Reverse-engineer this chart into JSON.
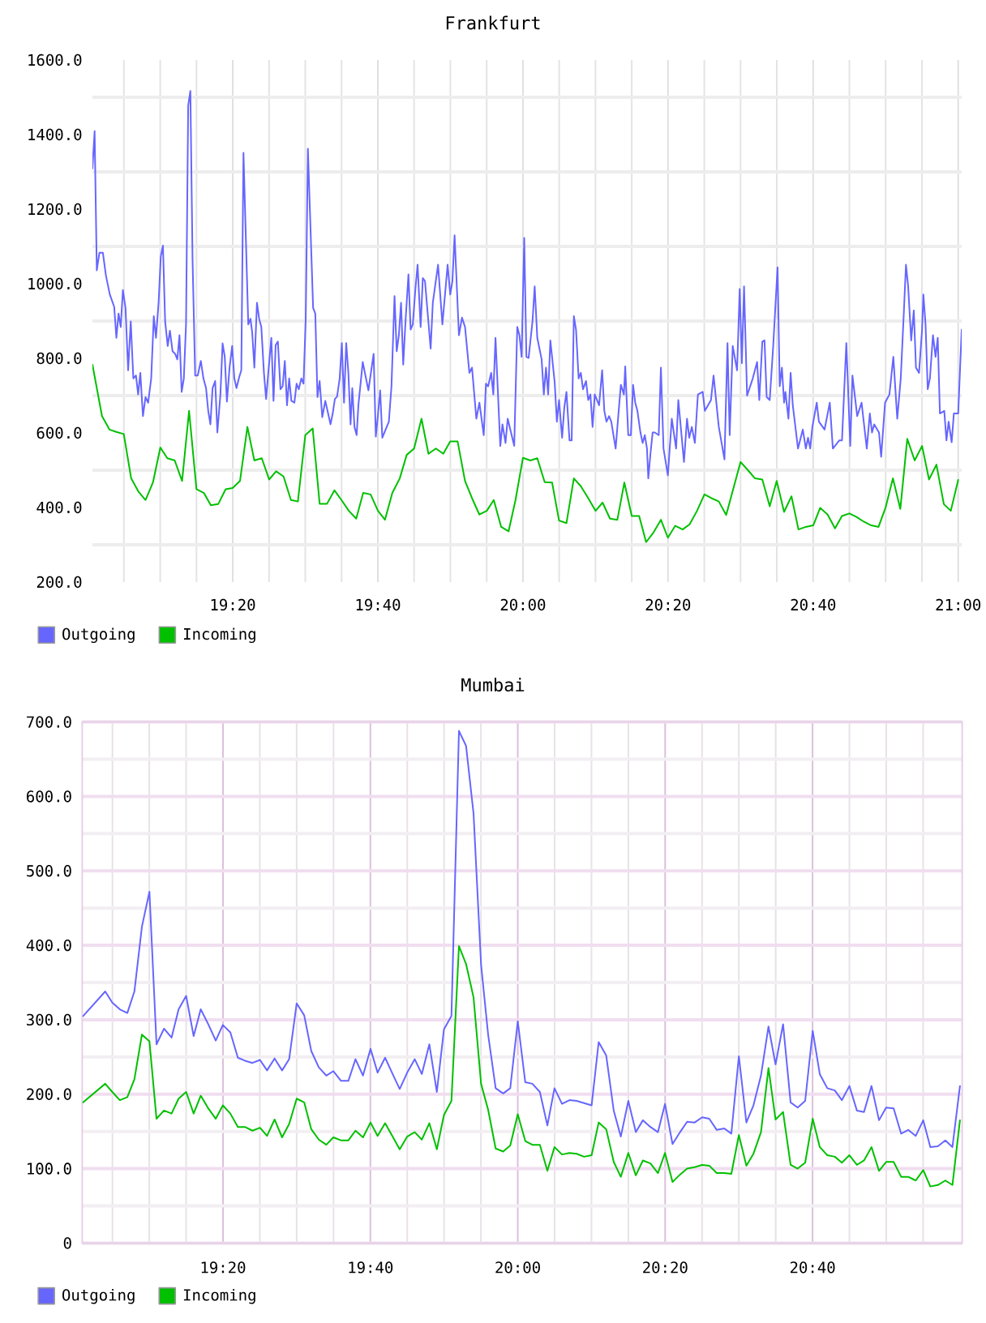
{
  "chart_data": [
    {
      "type": "line",
      "title": "Frankfurt",
      "series": [
        {
          "name": "Outgoing",
          "color": "#6666ff",
          "x": [
            19.011,
            19.016,
            19.021,
            19.027,
            19.035,
            19.042,
            19.051,
            19.061,
            19.066,
            19.071,
            19.076,
            19.081,
            19.087,
            19.093,
            19.099,
            19.105,
            19.111,
            19.116,
            19.121,
            19.127,
            19.133,
            19.139,
            19.146,
            19.152,
            19.157,
            19.163,
            19.168,
            19.173,
            19.178,
            19.184,
            19.189,
            19.195,
            19.201,
            19.206,
            19.211,
            19.216,
            19.221,
            19.226,
            19.231,
            19.236,
            19.241,
            19.247,
            19.253,
            19.26,
            19.266,
            19.272,
            19.277,
            19.282,
            19.287,
            19.293,
            19.298,
            19.305,
            19.31,
            19.315,
            19.32,
            19.326,
            19.332,
            19.337,
            19.342,
            19.348,
            19.353,
            19.358,
            19.369,
            19.374,
            19.378,
            19.383,
            19.389,
            19.394,
            19.399,
            19.405,
            19.41,
            19.415,
            19.422,
            19.427,
            19.432,
            19.437,
            19.443,
            19.448,
            19.453,
            19.458,
            19.463,
            19.468,
            19.475,
            19.48,
            19.485,
            19.491,
            19.496,
            19.501,
            19.506,
            19.518,
            19.523,
            19.528,
            19.533,
            19.539,
            19.546,
            19.558,
            19.563,
            19.568,
            19.573,
            19.579,
            19.584,
            19.589,
            19.594,
            19.599,
            19.604,
            19.608,
            19.613,
            19.618,
            19.622,
            19.632,
            19.645,
            19.657,
            19.662,
            19.667,
            19.672,
            19.677,
            19.692,
            19.698,
            19.705,
            19.71,
            19.715,
            19.72,
            19.725,
            19.73,
            19.737,
            19.742,
            19.747,
            19.753,
            19.758,
            19.765,
            19.77,
            19.775,
            19.788,
            19.793,
            19.805,
            19.815,
            19.827,
            19.833,
            19.838,
            19.843,
            19.853,
            19.86,
            19.867,
            19.877,
            19.883,
            19.893,
            19.9,
            19.91,
            19.915,
            19.92,
            19.927,
            19.932,
            19.937,
            19.948,
            19.953,
            19.96,
            19.965,
            19.98,
            19.987,
            19.992,
            19.997,
            20.003,
            20.008,
            20.013,
            20.022,
            20.027,
            20.033,
            20.043,
            20.048,
            20.053,
            20.058,
            20.063,
            20.073,
            20.078,
            20.083,
            20.09,
            20.095,
            20.1,
            20.107,
            20.112,
            20.117,
            20.122,
            20.128,
            20.133,
            20.138,
            20.145,
            20.15,
            20.155,
            20.16,
            20.165,
            20.175,
            20.182,
            20.187,
            20.192,
            20.198,
            20.203,
            20.213,
            20.22,
            20.225,
            20.232,
            20.235,
            20.242,
            20.248,
            20.253,
            20.258,
            20.263,
            20.27,
            20.275,
            20.28,
            20.285,
            20.288,
            20.293,
            20.298,
            20.303,
            20.312,
            20.317,
            20.323,
            20.333,
            20.342,
            20.352,
            20.357,
            20.37,
            20.377,
            20.382,
            20.388,
            20.395,
            20.402,
            20.413,
            20.418,
            20.432,
            20.438,
            20.45,
            20.463,
            20.47,
            20.475,
            20.482,
            20.492,
            20.498,
            20.503,
            20.508,
            20.515,
            20.528,
            20.538,
            20.543,
            20.55,
            20.555,
            20.56,
            20.567,
            20.575,
            20.585,
            20.59,
            20.595,
            20.6,
            20.603,
            20.61,
            20.615,
            20.62,
            20.632,
            20.643,
            20.65,
            20.655,
            20.66,
            20.665,
            20.675,
            20.68,
            20.693,
            20.705,
            20.712,
            20.727,
            20.733,
            20.743,
            20.752,
            20.757,
            20.768,
            20.778,
            20.79,
            20.797,
            20.802,
            20.807,
            20.818,
            20.823,
            20.832,
            20.842,
            20.851,
            20.86,
            20.868,
            20.875,
            20.88,
            20.885,
            20.892,
            20.898,
            20.903,
            20.91,
            20.917,
            20.92,
            20.925,
            20.93,
            20.935,
            20.942,
            20.948,
            20.953,
            20.958,
            20.968,
            20.973,
            20.978,
            20.985,
            20.99,
            21.0,
            21.008
          ],
          "values": [
            1309,
            1409,
            1036,
            1083,
            1083,
            1022,
            971,
            938,
            855,
            920,
            884,
            983,
            935,
            768,
            899,
            746,
            754,
            703,
            761,
            645,
            696,
            681,
            746,
            913,
            855,
            949,
            1073,
            1102,
            899,
            833,
            874,
            819,
            812,
            797,
            862,
            710,
            746,
            891,
            1478,
            1517,
            1065,
            754,
            754,
            793,
            746,
            720,
            659,
            623,
            720,
            739,
            601,
            703,
            840,
            804,
            684,
            775,
            833,
            746,
            720,
            749,
            768,
            1351,
            891,
            906,
            870,
            775,
            949,
            906,
            884,
            761,
            691,
            761,
            855,
            686,
            836,
            845,
            717,
            725,
            793,
            674,
            746,
            686,
            681,
            732,
            717,
            746,
            732,
            906,
            1362,
            935,
            920,
            696,
            739,
            642,
            686,
            623,
            652,
            691,
            697,
            746,
            841,
            681,
            841,
            761,
            623,
            720,
            616,
            594,
            674,
            790,
            714,
            812,
            590,
            648,
            714,
            587,
            630,
            725,
            967,
            819,
            862,
            949,
            783,
            894,
            1025,
            877,
            891,
            986,
            1051,
            884,
            1015,
            1007,
            826,
            949,
            1051,
            891,
            1051,
            971,
            1007,
            1130,
            862,
            909,
            884,
            761,
            775,
            638,
            681,
            594,
            732,
            725,
            761,
            703,
            855,
            565,
            623,
            573,
            638,
            565,
            884,
            862,
            804,
            1123,
            804,
            801,
            899,
            993,
            855,
            797,
            703,
            775,
            703,
            848,
            735,
            630,
            688,
            587,
            667,
            710,
            580,
            580,
            913,
            877,
            746,
            761,
            717,
            739,
            688,
            703,
            616,
            703,
            674,
            768,
            659,
            630,
            645,
            630,
            558,
            659,
            729,
            703,
            778,
            594,
            594,
            729,
            681,
            659,
            601,
            573,
            594,
            558,
            478,
            544,
            601,
            601,
            594,
            775,
            558,
            486,
            638,
            558,
            688,
            522,
            638,
            587,
            616,
            573,
            703,
            710,
            659,
            688,
            754,
            616,
            529,
            841,
            594,
            833,
            768,
            986,
            787,
            993,
            700,
            746,
            790,
            688,
            845,
            848,
            696,
            688,
            833,
            1044,
            725,
            775,
            681,
            710,
            638,
            761,
            674,
            558,
            609,
            558,
            587,
            558,
            616,
            681,
            630,
            609,
            681,
            558,
            580,
            580,
            841,
            565,
            754,
            645,
            681,
            558,
            652,
            601,
            623,
            601,
            536,
            681,
            703,
            804,
            638,
            746,
            920,
            1051,
            993,
            848,
            928,
            775,
            761,
            877,
            971,
            891,
            717,
            746,
            862,
            804,
            855,
            652,
            659,
            580,
            630,
            575,
            652,
            652,
            877
          ]
        },
        {
          "name": "Incoming",
          "color": "#00c000",
          "x": [
            19.011,
            19.033,
            19.05,
            19.067,
            19.083,
            19.1,
            19.117,
            19.133,
            19.15,
            19.167,
            19.183,
            19.2,
            19.217,
            19.233,
            19.25,
            19.267,
            19.283,
            19.3,
            19.317,
            19.333,
            19.35,
            19.367,
            19.383,
            19.4,
            19.417,
            19.433,
            19.45,
            19.467,
            19.483,
            19.5,
            19.517,
            19.533,
            19.55,
            19.567,
            19.583,
            19.6,
            19.617,
            19.633,
            19.65,
            19.667,
            19.683,
            19.7,
            19.717,
            19.733,
            19.75,
            19.767,
            19.783,
            19.8,
            19.817,
            19.833,
            19.85,
            19.867,
            19.883,
            19.9,
            19.917,
            19.933,
            19.95,
            19.967,
            19.983,
            20,
            20.017,
            20.033,
            20.05,
            20.067,
            20.083,
            20.1,
            20.117,
            20.133,
            20.15,
            20.167,
            20.183,
            20.2,
            20.217,
            20.233,
            20.25,
            20.267,
            20.283,
            20.3,
            20.317,
            20.333,
            20.35,
            20.367,
            20.383,
            20.4,
            20.417,
            20.433,
            20.45,
            20.467,
            20.483,
            20.5,
            20.517,
            20.533,
            20.55,
            20.567,
            20.583,
            20.6,
            20.617,
            20.633,
            20.65,
            20.667,
            20.683,
            20.7,
            20.717,
            20.733,
            20.75,
            20.767,
            20.783,
            20.8,
            20.817,
            20.833,
            20.85,
            20.867,
            20.883,
            20.9,
            20.917,
            20.933,
            20.95,
            20.967,
            20.983,
            21
          ],
          "values": [
            783,
            645,
            609,
            602,
            597,
            478,
            442,
            420,
            467,
            561,
            532,
            526,
            471,
            659,
            449,
            439,
            406,
            409,
            449,
            452,
            471,
            616,
            526,
            532,
            475,
            497,
            483,
            420,
            416,
            594,
            612,
            410,
            410,
            446,
            420,
            391,
            370,
            439,
            435,
            391,
            367,
            439,
            478,
            541,
            558,
            638,
            544,
            558,
            544,
            577,
            577,
            471,
            425,
            381,
            391,
            420,
            348,
            336,
            420,
            533,
            526,
            532,
            468,
            467,
            365,
            358,
            478,
            457,
            425,
            391,
            413,
            370,
            367,
            467,
            377,
            377,
            307,
            333,
            367,
            319,
            351,
            341,
            355,
            391,
            435,
            425,
            416,
            380,
            449,
            522,
            500,
            478,
            475,
            403,
            471,
            388,
            430,
            341,
            348,
            352,
            399,
            381,
            344,
            377,
            384,
            374,
            362,
            352,
            348,
            399,
            478,
            396,
            584,
            526,
            565,
            475,
            515,
            409,
            391,
            474
          ]
        }
      ],
      "xlim": [
        19.011,
        21.008
      ],
      "xticks": [
        {
          "value": 19.0833,
          "label": null
        },
        {
          "value": 19.1667,
          "label": null
        },
        {
          "value": 19.25,
          "label": null
        },
        {
          "value": 19.3333,
          "label": "19:20"
        },
        {
          "value": 19.4167,
          "label": null
        },
        {
          "value": 19.5,
          "label": null
        },
        {
          "value": 19.5833,
          "label": null
        },
        {
          "value": 19.6667,
          "label": "19:40"
        },
        {
          "value": 19.75,
          "label": null
        },
        {
          "value": 19.8333,
          "label": null
        },
        {
          "value": 19.9167,
          "label": null
        },
        {
          "value": 20,
          "label": "20:00"
        },
        {
          "value": 20.0833,
          "label": null
        },
        {
          "value": 20.1667,
          "label": null
        },
        {
          "value": 20.25,
          "label": null
        },
        {
          "value": 20.3333,
          "label": "20:20"
        },
        {
          "value": 20.4167,
          "label": null
        },
        {
          "value": 20.5,
          "label": null
        },
        {
          "value": 20.5833,
          "label": null
        },
        {
          "value": 20.6667,
          "label": "20:40"
        },
        {
          "value": 20.75,
          "label": null
        },
        {
          "value": 20.8333,
          "label": null
        },
        {
          "value": 20.9167,
          "label": null
        },
        {
          "value": 21,
          "label": "21:00"
        }
      ],
      "ylim": [
        200,
        1600
      ],
      "yticks": [
        {
          "value": 200,
          "label": "200.0"
        },
        {
          "value": 300,
          "label": null
        },
        {
          "value": 400,
          "label": "400.0"
        },
        {
          "value": 500,
          "label": null
        },
        {
          "value": 600,
          "label": "600.0"
        },
        {
          "value": 700,
          "label": null
        },
        {
          "value": 800,
          "label": "800.0"
        },
        {
          "value": 900,
          "label": null
        },
        {
          "value": 1000,
          "label": "1000.0"
        },
        {
          "value": 1100,
          "label": null
        },
        {
          "value": 1200,
          "label": "1200.0"
        },
        {
          "value": 1300,
          "label": null
        },
        {
          "value": 1400,
          "label": "1400.0"
        },
        {
          "value": 1500,
          "label": null
        },
        {
          "value": 1600,
          "label": "1600.0"
        }
      ],
      "grid": true,
      "legend": "bottom left"
    },
    {
      "type": "line",
      "title": "Mumbai",
      "x": [
        19.017,
        19.067,
        19.083,
        19.1,
        19.117,
        19.133,
        19.15,
        19.167,
        19.183,
        19.2,
        19.217,
        19.233,
        19.25,
        19.267,
        19.283,
        19.3,
        19.317,
        19.333,
        19.35,
        19.367,
        19.383,
        19.4,
        19.417,
        19.433,
        19.45,
        19.467,
        19.483,
        19.5,
        19.517,
        19.533,
        19.55,
        19.567,
        19.583,
        19.6,
        19.617,
        19.633,
        19.65,
        19.667,
        19.683,
        19.7,
        19.717,
        19.733,
        19.75,
        19.767,
        19.783,
        19.8,
        19.817,
        19.833,
        19.85,
        19.867,
        19.883,
        19.9,
        19.917,
        19.933,
        19.95,
        19.967,
        19.983,
        20,
        20.017,
        20.033,
        20.05,
        20.067,
        20.083,
        20.1,
        20.117,
        20.133,
        20.15,
        20.167,
        20.183,
        20.2,
        20.217,
        20.233,
        20.25,
        20.267,
        20.283,
        20.3,
        20.317,
        20.333,
        20.35,
        20.367,
        20.383,
        20.4,
        20.417,
        20.433,
        20.45,
        20.467,
        20.483,
        20.5,
        20.517,
        20.533,
        20.55,
        20.567,
        20.583,
        20.6,
        20.617,
        20.633,
        20.65,
        20.667,
        20.683,
        20.7,
        20.717,
        20.733,
        20.75,
        20.767,
        20.783,
        20.8,
        20.817,
        20.833,
        20.85,
        20.867,
        20.883,
        20.9,
        20.917,
        20.933,
        20.95,
        20.967,
        20.983,
        21
      ],
      "series": [
        {
          "name": "Outgoing",
          "color": "#6666ff",
          "values": [
            305,
            338,
            323,
            314,
            309,
            338,
            425,
            472,
            267,
            288,
            276,
            314,
            332,
            278,
            314,
            294,
            272,
            293,
            283,
            249,
            245,
            242,
            246,
            232,
            248,
            232,
            247,
            322,
            306,
            258,
            236,
            225,
            231,
            218,
            218,
            247,
            225,
            261,
            229,
            249,
            227,
            207,
            229,
            247,
            227,
            267,
            203,
            287,
            305,
            688,
            668,
            577,
            374,
            280,
            208,
            201,
            208,
            298,
            216,
            214,
            203,
            158,
            208,
            187,
            192,
            191,
            188,
            185,
            270,
            252,
            178,
            143,
            191,
            149,
            165,
            156,
            149,
            187,
            133,
            149,
            163,
            162,
            169,
            167,
            152,
            154,
            147,
            251,
            162,
            185,
            225,
            291,
            240,
            294,
            189,
            182,
            191,
            285,
            227,
            208,
            205,
            192,
            211,
            178,
            176,
            211,
            165,
            182,
            181,
            147,
            152,
            144,
            165,
            129,
            130,
            138,
            129,
            211
          ]
        },
        {
          "name": "Incoming",
          "color": "#00c000",
          "values": [
            189,
            214,
            203,
            192,
            196,
            220,
            280,
            271,
            167,
            178,
            174,
            194,
            203,
            174,
            198,
            181,
            167,
            185,
            174,
            156,
            156,
            151,
            155,
            144,
            166,
            142,
            160,
            194,
            189,
            153,
            139,
            132,
            142,
            138,
            138,
            151,
            142,
            162,
            144,
            161,
            143,
            126,
            143,
            149,
            139,
            161,
            126,
            172,
            191,
            399,
            375,
            330,
            214,
            179,
            127,
            123,
            131,
            173,
            137,
            132,
            132,
            97,
            129,
            119,
            121,
            120,
            116,
            118,
            162,
            153,
            109,
            89,
            121,
            91,
            111,
            107,
            94,
            121,
            82,
            92,
            100,
            102,
            105,
            104,
            94,
            94,
            93,
            145,
            104,
            120,
            149,
            235,
            166,
            176,
            105,
            100,
            108,
            167,
            129,
            118,
            116,
            108,
            118,
            105,
            111,
            129,
            97,
            109,
            109,
            89,
            89,
            84,
            98,
            76,
            78,
            84,
            78,
            165
          ]
        }
      ],
      "xlim": [
        19.015,
        21.005
      ],
      "xticks": [
        {
          "value": 19.0833,
          "label": null
        },
        {
          "value": 19.1667,
          "label": null
        },
        {
          "value": 19.25,
          "label": null
        },
        {
          "value": 19.3333,
          "label": "19:20"
        },
        {
          "value": 19.4167,
          "label": null
        },
        {
          "value": 19.5,
          "label": null
        },
        {
          "value": 19.5833,
          "label": null
        },
        {
          "value": 19.6667,
          "label": "19:40"
        },
        {
          "value": 19.75,
          "label": null
        },
        {
          "value": 19.8333,
          "label": null
        },
        {
          "value": 19.9167,
          "label": null
        },
        {
          "value": 20,
          "label": "20:00"
        },
        {
          "value": 20.0833,
          "label": null
        },
        {
          "value": 20.1667,
          "label": null
        },
        {
          "value": 20.25,
          "label": null
        },
        {
          "value": 20.3333,
          "label": "20:20"
        },
        {
          "value": 20.4167,
          "label": null
        },
        {
          "value": 20.5,
          "label": null
        },
        {
          "value": 20.5833,
          "label": null
        },
        {
          "value": 20.6667,
          "label": "20:40"
        },
        {
          "value": 20.75,
          "label": null
        },
        {
          "value": 20.8333,
          "label": null
        },
        {
          "value": 20.9167,
          "label": null
        }
      ],
      "ylim": [
        0,
        700
      ],
      "yticks": [
        0,
        {
          "value": 50,
          "label": null
        },
        {
          "value": 100,
          "label": "100.0"
        },
        {
          "value": 150,
          "label": null
        },
        {
          "value": 200,
          "label": "200.0"
        },
        {
          "value": 250,
          "label": null
        },
        {
          "value": 300,
          "label": "300.0"
        },
        {
          "value": 350,
          "label": null
        },
        {
          "value": 400,
          "label": "400.0"
        },
        {
          "value": 450,
          "label": null
        },
        {
          "value": 500,
          "label": "500.0"
        },
        {
          "value": 550,
          "label": null
        },
        {
          "value": 600,
          "label": "600.0"
        },
        {
          "value": 650,
          "label": null
        },
        {
          "value": 700,
          "label": "700.0"
        }
      ],
      "grid": true,
      "legend": "bottom left"
    }
  ]
}
